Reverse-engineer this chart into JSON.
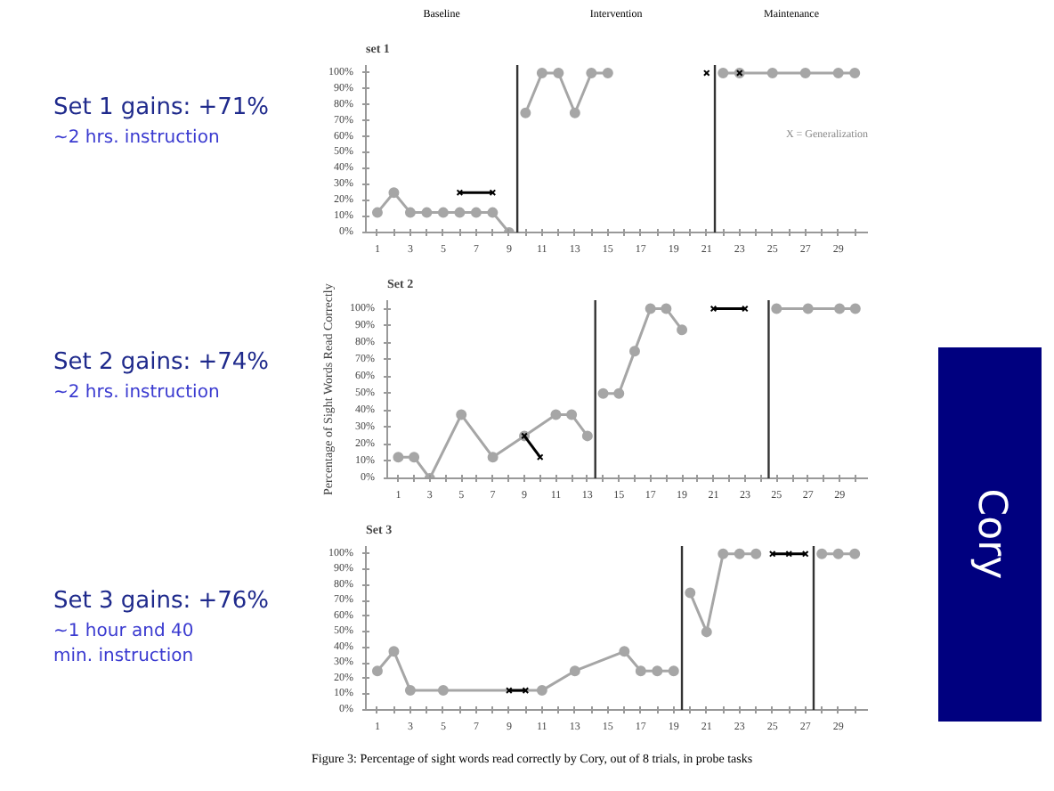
{
  "chart_data": [
    {
      "type": "line",
      "title": "set 1",
      "annotations": [
        "Set 1 gains: +71%",
        "~2 hrs. instruction",
        "Baseline",
        "Intervention",
        "Maintenance",
        "X = Generalization"
      ],
      "xlim": [
        0.3,
        30.8
      ],
      "ylim": [
        0,
        105
      ],
      "xticks": [
        1,
        {
          "value": 2,
          "label": null
        },
        3,
        {
          "value": 4,
          "label": null
        },
        5,
        {
          "value": 6,
          "label": null
        },
        7,
        {
          "value": 8,
          "label": null
        },
        9,
        {
          "value": 10,
          "label": null
        },
        11,
        {
          "value": 12,
          "label": null
        },
        13,
        {
          "value": 14,
          "label": null
        },
        15,
        {
          "value": 16,
          "label": null
        },
        17,
        {
          "value": 18,
          "label": null
        },
        19,
        {
          "value": 20,
          "label": null
        },
        21,
        {
          "value": 22,
          "label": null
        },
        23,
        {
          "value": 24,
          "label": null
        },
        25,
        {
          "value": 26,
          "label": null
        },
        27,
        {
          "value": 28,
          "label": null
        },
        29,
        {
          "value": 30,
          "label": null
        }
      ],
      "yticks": [
        {
          "value": 0,
          "label": "0%"
        },
        {
          "value": 10,
          "label": "10%"
        },
        {
          "value": 20,
          "label": "20%"
        },
        {
          "value": 30,
          "label": "30%"
        },
        {
          "value": 40,
          "label": "40%"
        },
        {
          "value": 50,
          "label": "50%"
        },
        {
          "value": 60,
          "label": "60%"
        },
        {
          "value": 70,
          "label": "70%"
        },
        {
          "value": 80,
          "label": "80%"
        },
        {
          "value": 90,
          "label": "90%"
        },
        {
          "value": 100,
          "label": "100%"
        }
      ],
      "grid": false,
      "ref_lines": [
        {
          "axis": "x",
          "value": 9.5,
          "color": "#333333"
        },
        {
          "axis": "x",
          "value": 21.5,
          "color": "#333333"
        }
      ],
      "series": [
        {
          "color": "#a6a6a6",
          "marker": "circle",
          "x": [
            1,
            2,
            3,
            4,
            5,
            6,
            7,
            8,
            9
          ],
          "values": [
            12.5,
            25,
            12.5,
            12.5,
            12.5,
            12.5,
            12.5,
            12.5,
            0
          ]
        },
        {
          "color": "#a6a6a6",
          "marker": "circle",
          "x": [
            10,
            11,
            12,
            13,
            14,
            15
          ],
          "values": [
            75,
            100,
            100,
            75,
            100,
            100
          ]
        },
        {
          "color": "#a6a6a6",
          "marker": "circle",
          "x": [
            22,
            23,
            25,
            27,
            29,
            30
          ],
          "values": [
            100,
            100,
            100,
            100,
            100,
            100
          ]
        },
        {
          "color": "#000000",
          "marker": "cross",
          "x": [
            6,
            8
          ],
          "values": [
            25,
            25
          ]
        },
        {
          "color": "#000000",
          "marker": "cross",
          "x": [
            21
          ],
          "values": [
            100
          ]
        },
        {
          "color": "#000000",
          "marker": "cross",
          "x": [
            23
          ],
          "values": [
            100
          ]
        }
      ]
    },
    {
      "type": "line",
      "title": "Set 2",
      "ylabel": "Percentage of Sight Words Read Correctly",
      "annotations": [
        "Set 2 gains: +74%",
        "~2 hrs. instruction"
      ],
      "xlim": [
        0.3,
        30.8
      ],
      "ylim": [
        0,
        105
      ],
      "xticks": [
        1,
        {
          "value": 2,
          "label": null
        },
        3,
        {
          "value": 4,
          "label": null
        },
        5,
        {
          "value": 6,
          "label": null
        },
        7,
        {
          "value": 8,
          "label": null
        },
        9,
        {
          "value": 10,
          "label": null
        },
        11,
        {
          "value": 12,
          "label": null
        },
        13,
        {
          "value": 14,
          "label": null
        },
        15,
        {
          "value": 16,
          "label": null
        },
        17,
        {
          "value": 18,
          "label": null
        },
        19,
        {
          "value": 20,
          "label": null
        },
        21,
        {
          "value": 22,
          "label": null
        },
        23,
        {
          "value": 24,
          "label": null
        },
        25,
        {
          "value": 26,
          "label": null
        },
        27,
        {
          "value": 28,
          "label": null
        },
        29,
        {
          "value": 30,
          "label": null
        }
      ],
      "yticks": [
        {
          "value": 0,
          "label": "0%"
        },
        {
          "value": 10,
          "label": "10%"
        },
        {
          "value": 20,
          "label": "20%"
        },
        {
          "value": 30,
          "label": "30%"
        },
        {
          "value": 40,
          "label": "40%"
        },
        {
          "value": 50,
          "label": "50%"
        },
        {
          "value": 60,
          "label": "60%"
        },
        {
          "value": 70,
          "label": "70%"
        },
        {
          "value": 80,
          "label": "80%"
        },
        {
          "value": 90,
          "label": "90%"
        },
        {
          "value": 100,
          "label": "100%"
        }
      ],
      "grid": false,
      "ref_lines": [
        {
          "axis": "x",
          "value": 13.5,
          "color": "#333333"
        },
        {
          "axis": "x",
          "value": 24.5,
          "color": "#333333"
        }
      ],
      "series": [
        {
          "color": "#a6a6a6",
          "marker": "circle",
          "x": [
            1,
            2,
            3,
            5,
            7,
            9,
            11,
            12,
            13
          ],
          "values": [
            12.5,
            12.5,
            0,
            37.5,
            12.5,
            25,
            37.5,
            37.5,
            25
          ]
        },
        {
          "color": "#a6a6a6",
          "marker": "circle",
          "x": [
            14,
            15,
            16,
            17,
            18,
            19
          ],
          "values": [
            50,
            50,
            75,
            100,
            100,
            87.5
          ]
        },
        {
          "color": "#a6a6a6",
          "marker": "circle",
          "x": [
            25,
            27,
            29,
            30
          ],
          "values": [
            100,
            100,
            100,
            100
          ]
        },
        {
          "color": "#000000",
          "marker": "cross",
          "x": [
            9,
            10
          ],
          "values": [
            25,
            12.5
          ]
        },
        {
          "color": "#000000",
          "marker": "cross",
          "x": [
            21,
            23
          ],
          "values": [
            100,
            100
          ]
        }
      ]
    },
    {
      "type": "line",
      "title": "Set 3",
      "annotations": [
        "Set 3 gains: +76%",
        "~1 hour and 40 min. instruction"
      ],
      "xlim": [
        0.3,
        30.8
      ],
      "ylim": [
        0,
        105
      ],
      "xticks": [
        1,
        {
          "value": 2,
          "label": null
        },
        3,
        {
          "value": 4,
          "label": null
        },
        5,
        {
          "value": 6,
          "label": null
        },
        7,
        {
          "value": 8,
          "label": null
        },
        9,
        {
          "value": 10,
          "label": null
        },
        11,
        {
          "value": 12,
          "label": null
        },
        13,
        {
          "value": 14,
          "label": null
        },
        15,
        {
          "value": 16,
          "label": null
        },
        17,
        {
          "value": 18,
          "label": null
        },
        19,
        {
          "value": 20,
          "label": null
        },
        21,
        {
          "value": 22,
          "label": null
        },
        23,
        {
          "value": 24,
          "label": null
        },
        25,
        {
          "value": 26,
          "label": null
        },
        27,
        {
          "value": 28,
          "label": null
        },
        29,
        {
          "value": 30,
          "label": null
        }
      ],
      "yticks": [
        {
          "value": 0,
          "label": "0%"
        },
        {
          "value": 10,
          "label": "10%"
        },
        {
          "value": 20,
          "label": "20%"
        },
        {
          "value": 30,
          "label": "30%"
        },
        {
          "value": 40,
          "label": "40%"
        },
        {
          "value": 50,
          "label": "50%"
        },
        {
          "value": 60,
          "label": "60%"
        },
        {
          "value": 70,
          "label": "70%"
        },
        {
          "value": 80,
          "label": "80%"
        },
        {
          "value": 90,
          "label": "90%"
        },
        {
          "value": 100,
          "label": "100%"
        }
      ],
      "grid": false,
      "ref_lines": [
        {
          "axis": "x",
          "value": 19.5,
          "color": "#333333"
        },
        {
          "axis": "x",
          "value": 27.5,
          "color": "#333333"
        }
      ],
      "series": [
        {
          "color": "#a6a6a6",
          "marker": "circle",
          "x": [
            1,
            2,
            3,
            5,
            11,
            13,
            16,
            17,
            18,
            19
          ],
          "values": [
            25,
            37.5,
            12.5,
            12.5,
            12.5,
            25,
            37.5,
            25,
            25,
            25
          ]
        },
        {
          "color": "#a6a6a6",
          "marker": "circle",
          "x": [
            20,
            21,
            22,
            23,
            24
          ],
          "values": [
            75,
            50,
            100,
            100,
            100
          ]
        },
        {
          "color": "#a6a6a6",
          "marker": "circle",
          "x": [
            28,
            29,
            30
          ],
          "values": [
            100,
            100,
            100
          ]
        },
        {
          "color": "#000000",
          "marker": "cross",
          "x": [
            9,
            10
          ],
          "values": [
            12.5,
            12.5
          ]
        },
        {
          "color": "#000000",
          "marker": "cross",
          "x": [
            25,
            26,
            27
          ],
          "values": [
            100,
            100,
            100
          ]
        }
      ]
    },
    {
      "type": "other",
      "title": "Cory",
      "annotations": [
        "Figure 3: Percentage of sight words read correctly by Cory, out of 8 trials, in probe tasks"
      ]
    }
  ]
}
